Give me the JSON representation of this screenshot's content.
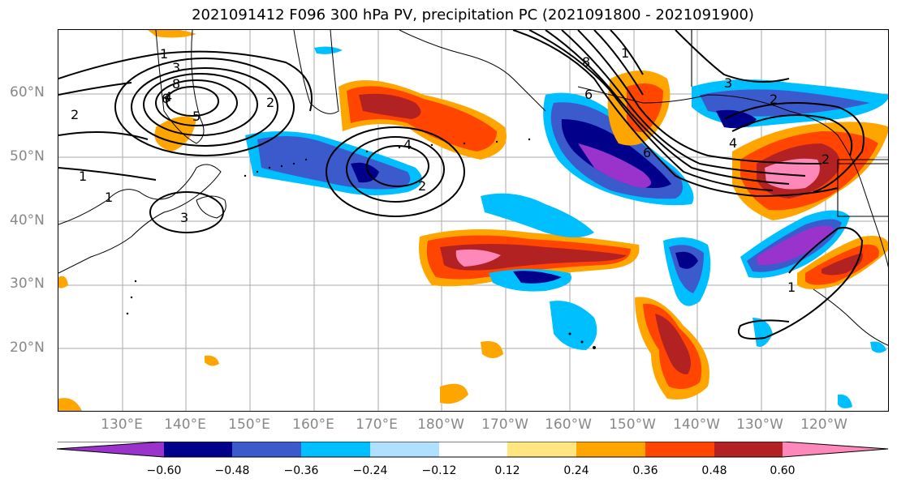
{
  "title": "2021091412 F096 300 hPa PV, precipitation PC (2021091800 - 2021091900)",
  "lat_labels": [
    "60°N",
    "50°N",
    "40°N",
    "30°N",
    "20°N"
  ],
  "lon_labels": [
    "130°E",
    "140°E",
    "150°E",
    "160°E",
    "170°E",
    "180°W",
    "170°W",
    "160°W",
    "150°W",
    "140°W",
    "130°W",
    "120°W"
  ],
  "colorbar": {
    "ticks": [
      "−0.60",
      "−0.48",
      "−0.36",
      "−0.24",
      "−0.12",
      "0.12",
      "0.24",
      "0.36",
      "0.48",
      "0.60"
    ],
    "colors": [
      "#9933cc",
      "#00008b",
      "#3b5bcc",
      "#00bfff",
      "#b0e0ff",
      "#ffffff",
      "#ffe680",
      "#ffa500",
      "#ff4500",
      "#b22222",
      "#ff88bb"
    ]
  },
  "contour_labels": [
    "1",
    "2",
    "3",
    "4",
    "5",
    "6",
    "8",
    "1",
    "1",
    "2",
    "3",
    "4",
    "2",
    "6",
    "8",
    "6",
    "1",
    "2",
    "3",
    "4",
    "2",
    "1"
  ]
}
